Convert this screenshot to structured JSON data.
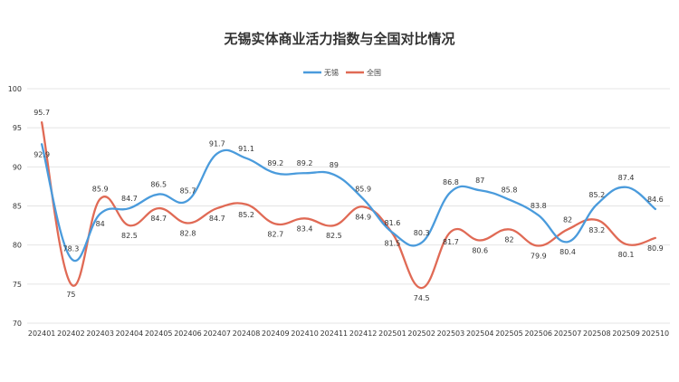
{
  "chart_data": {
    "type": "line",
    "title": "无锡实体商业活力指数与全国对比情况",
    "categories": [
      "202401",
      "202402",
      "202403",
      "202404",
      "202405",
      "202406",
      "202407",
      "202408",
      "202409",
      "202410",
      "202411",
      "202412",
      "202501",
      "202502",
      "202503",
      "202504",
      "202505",
      "202506",
      "202507",
      "202508",
      "202509",
      "202510"
    ],
    "series": [
      {
        "name": "无锡",
        "color": "#4a9bdc",
        "values": [
          92.9,
          78.3,
          84,
          84.7,
          86.5,
          85.7,
          91.7,
          91.1,
          89.2,
          89.2,
          89,
          85.9,
          81.6,
          80.3,
          86.8,
          87,
          85.8,
          83.8,
          80.4,
          85.2,
          87.4,
          84.6
        ],
        "label_texts": [
          "92.9",
          "78.3",
          "84",
          "84.7",
          "86.5",
          "85.7",
          "91.7",
          "91.1",
          "89.2",
          "89.2",
          "89",
          "85.9",
          "81.6",
          "80.3",
          "86.8",
          "87",
          "85.8",
          "83.8",
          "80.4",
          "85.2",
          "87.4",
          "84.6"
        ]
      },
      {
        "name": "全国",
        "color": "#e06a55",
        "values": [
          95.7,
          75,
          85.9,
          82.5,
          84.7,
          82.8,
          84.7,
          85.2,
          82.7,
          83.4,
          82.5,
          84.9,
          81.5,
          74.5,
          81.7,
          80.6,
          82,
          79.9,
          82,
          83.2,
          80.1,
          80.9
        ],
        "label_texts": [
          "95.7",
          "75",
          "85.9",
          "82.5",
          "84.7",
          "82.8",
          "84.7",
          "85.2",
          "82.7",
          "83.4",
          "82.5",
          "84.9",
          "81.5",
          "74.5",
          "81.7",
          "80.6",
          "82",
          "79.9",
          "82",
          "83.2",
          "80.1",
          "80.9"
        ]
      }
    ],
    "ylim": [
      70,
      100
    ],
    "yticks": [
      "70",
      "75",
      "80",
      "85",
      "90",
      "95",
      "100"
    ],
    "grid": true,
    "legend": "top-center"
  }
}
